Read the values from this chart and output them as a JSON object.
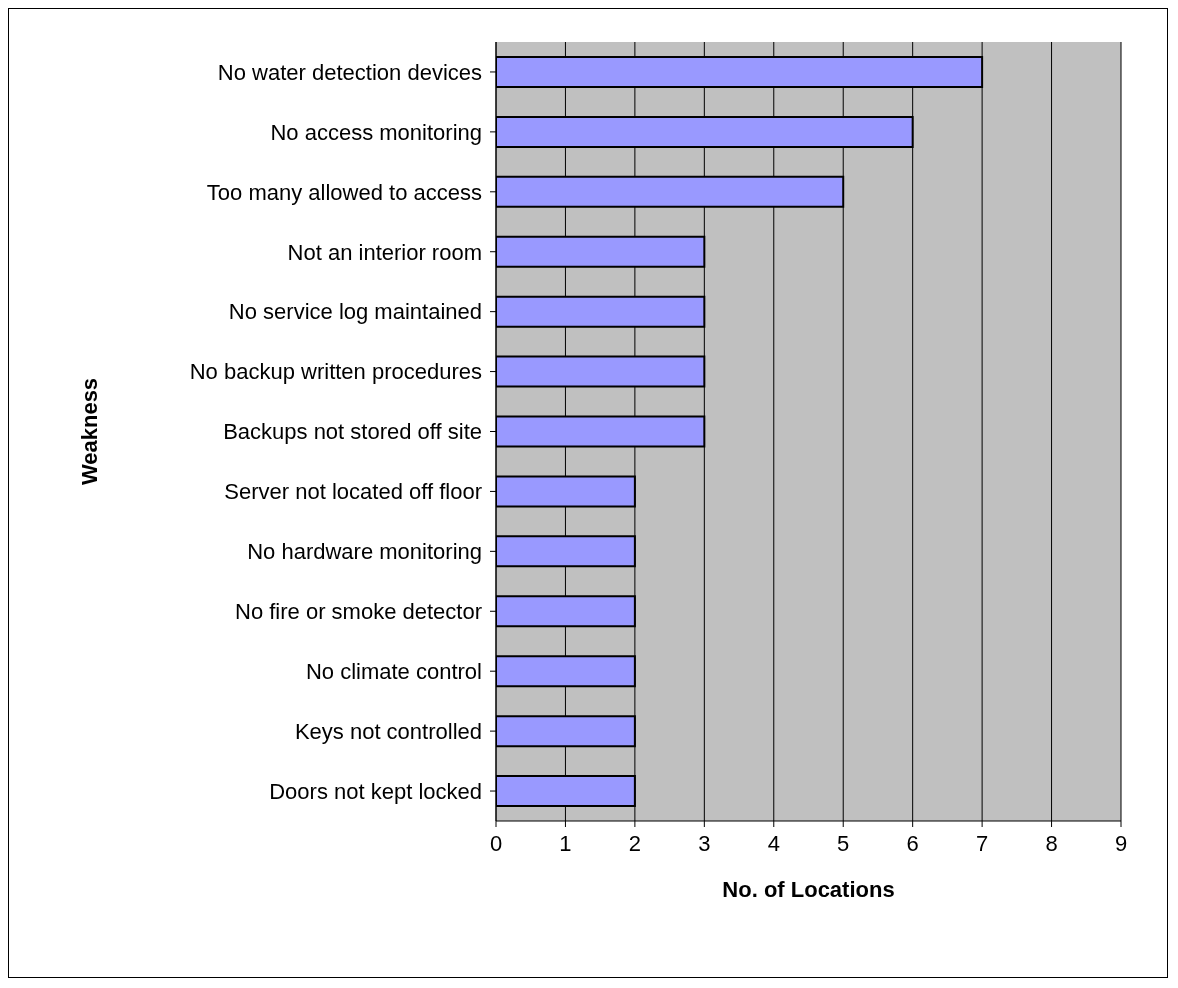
{
  "chart_data": {
    "type": "bar",
    "orientation": "horizontal",
    "xlabel": "No. of Locations",
    "ylabel": "Weakness",
    "categories": [
      "No water detection devices",
      "No access monitoring",
      "Too many allowed to access",
      "Not an interior room",
      "No service log maintained",
      "No backup written procedures",
      "Backups not stored off site",
      "Server not located off floor",
      "No hardware monitoring",
      "No fire or smoke detector",
      "No climate control",
      "Keys not controlled",
      "Doors not kept locked"
    ],
    "values": [
      7,
      6,
      5,
      3,
      3,
      3,
      3,
      2,
      2,
      2,
      2,
      2,
      2
    ],
    "color": "#9999ff",
    "xlim": [
      0,
      9
    ],
    "xticks": [
      0,
      1,
      2,
      3,
      4,
      5,
      6,
      7,
      8,
      9
    ],
    "grid": "x",
    "legend": false
  }
}
